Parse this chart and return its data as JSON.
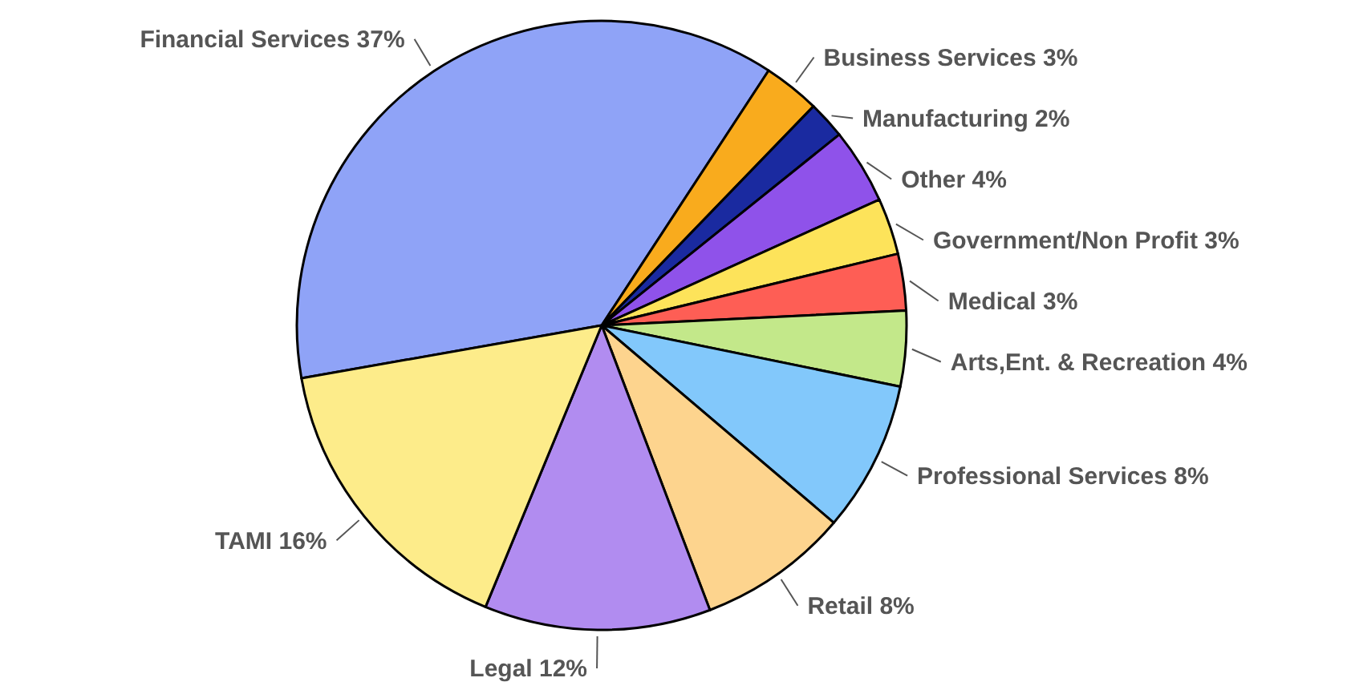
{
  "chart_data": {
    "type": "pie",
    "categories": [
      "Financial Services",
      "Business Services",
      "Manufacturing",
      "Other",
      "Government/Non Profit",
      "Medical",
      "Arts,Ent. & Recreation",
      "Professional Services",
      "Retail",
      "Legal",
      "TAMI"
    ],
    "values": [
      37,
      3,
      2,
      4,
      3,
      3,
      4,
      8,
      8,
      12,
      16
    ],
    "value_labels": [
      "37%",
      "3%",
      "2%",
      "4%",
      "3%",
      "3%",
      "4%",
      "8%",
      "8%",
      "12%",
      "16%"
    ],
    "colors": [
      "#8fa3f7",
      "#f9ab1d",
      "#1a2aa0",
      "#8f52ea",
      "#fde35a",
      "#fe5e55",
      "#c3e88a",
      "#82c8fb",
      "#fdd48e",
      "#b18cf0",
      "#fdec8a"
    ]
  }
}
